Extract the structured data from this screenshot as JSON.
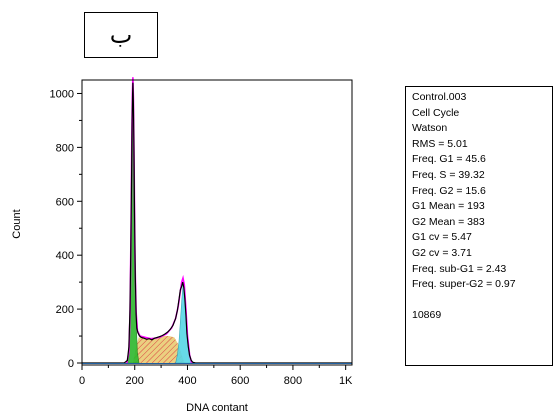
{
  "panel_label": "ب",
  "stats": {
    "lines": [
      "Control.003",
      "Cell Cycle",
      "Watson",
      "RMS = 5.01",
      "Freq. G1 = 45.6",
      "Freq. S = 39.32",
      "Freq. G2 = 15.6",
      "G1 Mean = 193",
      "G2 Mean = 383",
      "G1 cv = 5.47",
      "G2 cv = 3.71",
      "Freq. sub-G1 = 2.43",
      "Freq. super-G2 = 0.97"
    ],
    "event_count": "10869"
  },
  "colors": {
    "histogram_outline": "#000000",
    "fit_envelope": "#ff00ff",
    "g1_fill": "#2db82d",
    "s_fill": "#e8c86a",
    "s_hatch": "#d42020",
    "g2_fill": "#57d6e6",
    "baseline": "#2060a0"
  },
  "chart_data": {
    "type": "area",
    "xlabel": "DNA contant",
    "ylabel": "Count",
    "xlim": [
      0,
      1024
    ],
    "ylim": [
      0,
      1050
    ],
    "x_ticks": [
      {
        "value": 0,
        "label": "0"
      },
      {
        "value": 200,
        "label": "200"
      },
      {
        "value": 400,
        "label": "400"
      },
      {
        "value": 600,
        "label": "600"
      },
      {
        "value": 800,
        "label": "800"
      },
      {
        "value": 1000,
        "label": "1K"
      }
    ],
    "y_ticks": [
      {
        "value": 0,
        "label": "0"
      },
      {
        "value": 200,
        "label": "200"
      },
      {
        "value": 400,
        "label": "400"
      },
      {
        "value": 600,
        "label": "600"
      },
      {
        "value": 800,
        "label": "800"
      },
      {
        "value": 1000,
        "label": "1000"
      }
    ],
    "histogram": {
      "x": [
        0,
        160,
        172,
        178,
        182,
        185,
        188,
        190,
        192,
        193,
        195,
        197,
        199,
        202,
        205,
        208,
        212,
        218,
        225,
        235,
        245,
        255,
        265,
        275,
        285,
        295,
        305,
        315,
        325,
        335,
        345,
        355,
        362,
        368,
        373,
        378,
        382,
        386,
        390,
        394,
        398,
        403,
        408,
        414,
        420,
        430,
        460,
        1024
      ],
      "y": [
        0,
        0,
        10,
        60,
        200,
        420,
        700,
        900,
        1000,
        1040,
        960,
        820,
        560,
        320,
        180,
        130,
        112,
        100,
        95,
        92,
        88,
        90,
        86,
        92,
        95,
        98,
        102,
        108,
        115,
        125,
        140,
        165,
        195,
        235,
        270,
        285,
        300,
        280,
        240,
        180,
        110,
        60,
        28,
        10,
        3,
        0,
        0,
        0
      ]
    },
    "fit": {
      "x": [
        170,
        178,
        182,
        186,
        189,
        191,
        193,
        195,
        198,
        201,
        205,
        210,
        220,
        240,
        260,
        280,
        300,
        320,
        340,
        355,
        365,
        372,
        378,
        383,
        388,
        394,
        400,
        408,
        416
      ],
      "y": [
        0,
        40,
        180,
        480,
        820,
        1000,
        1060,
        980,
        700,
        380,
        190,
        120,
        100,
        95,
        90,
        92,
        98,
        108,
        130,
        165,
        210,
        260,
        300,
        315,
        290,
        200,
        100,
        30,
        0
      ]
    },
    "g1_component": {
      "x": [
        172,
        178,
        182,
        186,
        189,
        191,
        193,
        195,
        198,
        201,
        205,
        210,
        216
      ],
      "y": [
        0,
        40,
        180,
        480,
        820,
        1000,
        1060,
        980,
        700,
        380,
        160,
        40,
        0
      ]
    },
    "s_component": {
      "x": [
        193,
        205,
        215,
        230,
        250,
        270,
        290,
        310,
        330,
        350,
        365,
        375,
        383,
        390
      ],
      "y": [
        0,
        60,
        95,
        95,
        90,
        90,
        95,
        100,
        100,
        95,
        70,
        40,
        15,
        0
      ]
    },
    "g2_component": {
      "x": [
        355,
        362,
        368,
        373,
        378,
        383,
        388,
        394,
        400,
        408,
        416
      ],
      "y": [
        0,
        30,
        80,
        150,
        230,
        290,
        270,
        190,
        100,
        30,
        0
      ]
    }
  }
}
